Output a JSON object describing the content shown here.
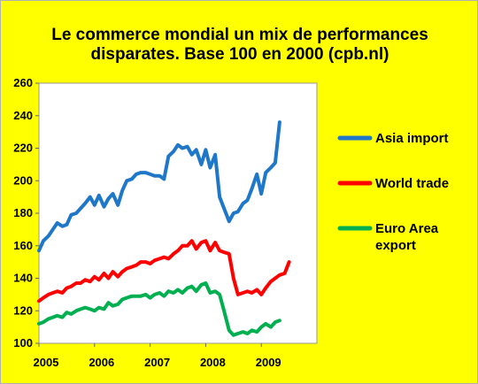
{
  "chart_data": {
    "type": "line",
    "title": "Le commerce mondial un  mix  de performances\ndisparates. Base 100 en 2000 (cpb.nl)",
    "xlabel": "",
    "ylabel": "",
    "xlim": [
      2005,
      2010
    ],
    "ylim": [
      100,
      260
    ],
    "x_ticks": [
      2005,
      2006,
      2007,
      2008,
      2009
    ],
    "y_ticks": [
      100,
      120,
      140,
      160,
      180,
      200,
      220,
      240,
      260
    ],
    "grid": false,
    "legend_position": "right",
    "series": [
      {
        "name": "Asia import",
        "color": "#1f77c9",
        "x": [
          2005.0,
          2005.08,
          2005.17,
          2005.25,
          2005.33,
          2005.42,
          2005.5,
          2005.58,
          2005.67,
          2005.75,
          2005.83,
          2005.92,
          2006.0,
          2006.08,
          2006.17,
          2006.25,
          2006.33,
          2006.42,
          2006.5,
          2006.58,
          2006.67,
          2006.75,
          2006.83,
          2006.92,
          2007.0,
          2007.08,
          2007.17,
          2007.25,
          2007.33,
          2007.42,
          2007.5,
          2007.58,
          2007.67,
          2007.75,
          2007.83,
          2007.92,
          2008.0,
          2008.08,
          2008.17,
          2008.25,
          2008.33,
          2008.42,
          2008.5,
          2008.58,
          2008.67,
          2008.75,
          2008.83,
          2008.92,
          2009.0,
          2009.08,
          2009.17,
          2009.25,
          2009.33,
          2009.42,
          2009.5,
          2009.58,
          2009.67,
          2009.75,
          2009.83,
          2009.92
        ],
        "values": [
          157,
          163,
          166,
          170,
          174,
          172,
          173,
          179,
          180,
          183,
          186,
          190,
          185,
          191,
          184,
          189,
          192,
          185,
          194,
          200,
          201,
          204,
          205,
          205,
          204,
          203,
          203,
          201,
          215,
          218,
          222,
          220,
          221,
          216,
          219,
          210,
          219,
          208,
          216,
          190,
          183,
          175,
          180,
          181,
          186,
          188,
          195,
          204,
          192,
          205,
          208,
          211,
          236,
          236,
          236,
          236,
          236,
          236,
          236,
          236
        ]
      },
      {
        "name": "World trade",
        "color": "#ff0000",
        "x": [
          2005.0,
          2005.08,
          2005.17,
          2005.25,
          2005.33,
          2005.42,
          2005.5,
          2005.58,
          2005.67,
          2005.75,
          2005.83,
          2005.92,
          2006.0,
          2006.08,
          2006.17,
          2006.25,
          2006.33,
          2006.42,
          2006.5,
          2006.58,
          2006.67,
          2006.75,
          2006.83,
          2006.92,
          2007.0,
          2007.08,
          2007.17,
          2007.25,
          2007.33,
          2007.42,
          2007.5,
          2007.58,
          2007.67,
          2007.75,
          2007.83,
          2007.92,
          2008.0,
          2008.08,
          2008.17,
          2008.25,
          2008.33,
          2008.42,
          2008.5,
          2008.58,
          2008.67,
          2008.75,
          2008.83,
          2008.92,
          2009.0,
          2009.08,
          2009.17,
          2009.25,
          2009.33,
          2009.42,
          2009.5,
          2009.58,
          2009.67,
          2009.75,
          2009.83,
          2009.92
        ],
        "values": [
          126,
          128,
          130,
          131,
          132,
          131,
          134,
          135,
          137,
          137,
          139,
          138,
          141,
          139,
          143,
          140,
          144,
          141,
          144,
          146,
          147,
          148,
          150,
          150,
          149,
          151,
          152,
          153,
          152,
          155,
          157,
          160,
          160,
          163,
          158,
          162,
          163,
          157,
          162,
          157,
          156,
          155,
          140,
          130,
          131,
          132,
          131,
          133,
          130,
          134,
          138,
          140,
          142,
          143,
          150,
          150,
          150,
          150,
          150,
          150
        ]
      },
      {
        "name": "Euro Area\nexport",
        "color": "#00b050",
        "x": [
          2005.0,
          2005.08,
          2005.17,
          2005.25,
          2005.33,
          2005.42,
          2005.5,
          2005.58,
          2005.67,
          2005.75,
          2005.83,
          2005.92,
          2006.0,
          2006.08,
          2006.17,
          2006.25,
          2006.33,
          2006.42,
          2006.5,
          2006.58,
          2006.67,
          2006.75,
          2006.83,
          2006.92,
          2007.0,
          2007.08,
          2007.17,
          2007.25,
          2007.33,
          2007.42,
          2007.5,
          2007.58,
          2007.67,
          2007.75,
          2007.83,
          2007.92,
          2008.0,
          2008.08,
          2008.17,
          2008.25,
          2008.33,
          2008.42,
          2008.5,
          2008.58,
          2008.67,
          2008.75,
          2008.83,
          2008.92,
          2009.0,
          2009.08,
          2009.17,
          2009.25,
          2009.33,
          2009.42,
          2009.5,
          2009.58,
          2009.67,
          2009.75,
          2009.83,
          2009.92
        ],
        "values": [
          112,
          113,
          115,
          116,
          117,
          116,
          119,
          118,
          120,
          121,
          122,
          121,
          120,
          122,
          121,
          125,
          123,
          124,
          127,
          128,
          129,
          129,
          129,
          130,
          128,
          130,
          131,
          129,
          132,
          131,
          133,
          131,
          134,
          135,
          132,
          136,
          137,
          131,
          132,
          130,
          120,
          108,
          105,
          106,
          107,
          106,
          108,
          107,
          110,
          112,
          110,
          113,
          114,
          114,
          114,
          114,
          114,
          114,
          114,
          114
        ]
      }
    ]
  }
}
